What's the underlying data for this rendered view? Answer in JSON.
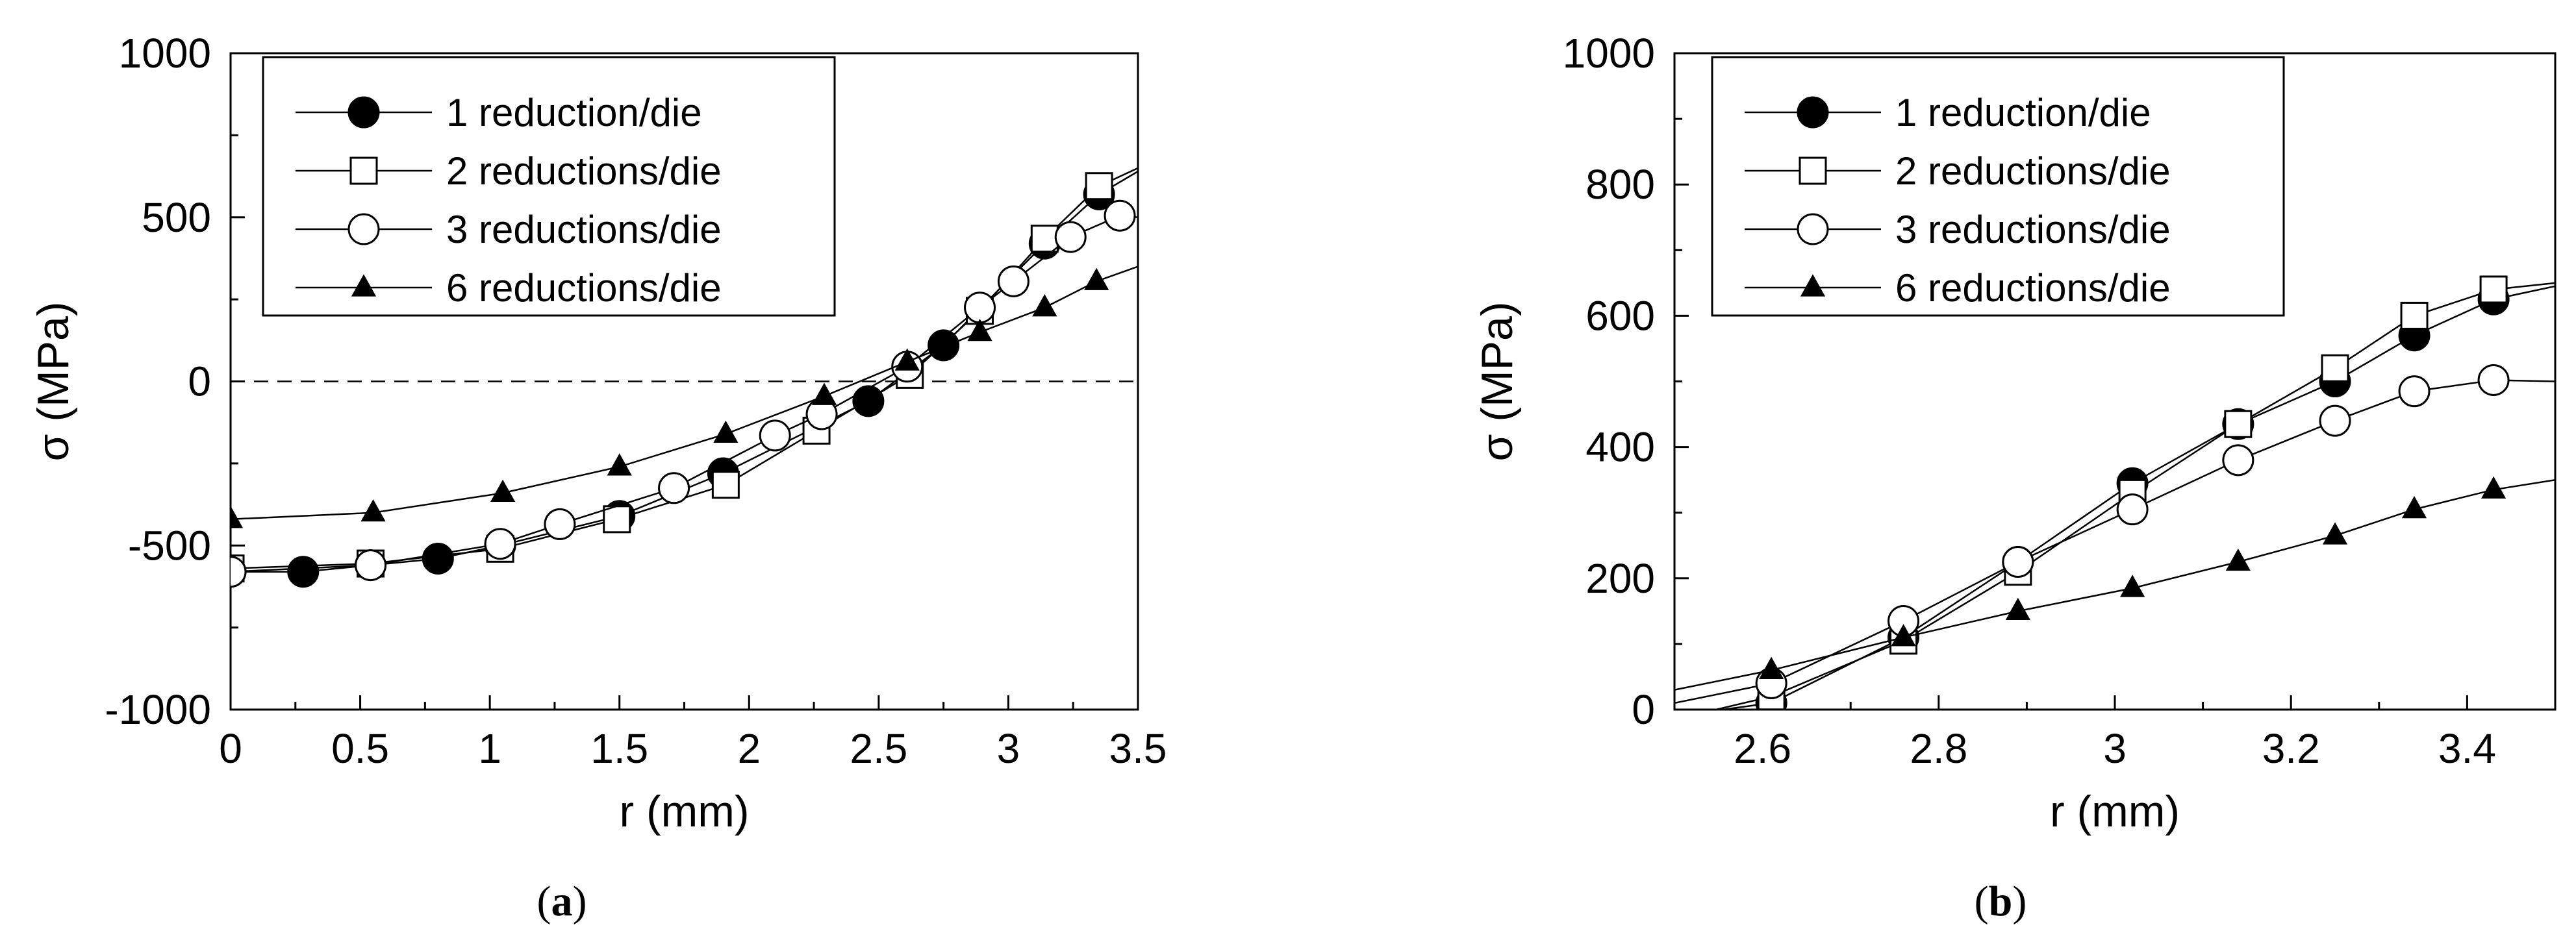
{
  "chart_data": [
    {
      "panel": "(a)",
      "type": "line",
      "xlabel": "r (mm)",
      "ylabel": "σ (MPa)",
      "xlim": [
        0,
        3.5
      ],
      "ylim": [
        -1000,
        1000
      ],
      "xticks": [
        0,
        0.5,
        1,
        1.5,
        2,
        2.5,
        3,
        3.5
      ],
      "yticks": [
        -1000,
        -500,
        0,
        500,
        1000
      ],
      "xtick_labels": [
        "0",
        "0.5",
        "1",
        "1.5",
        "2",
        "2.5",
        "3",
        "3.5"
      ],
      "ytick_labels": [
        "-1000",
        "-500",
        "0",
        "500",
        "1000"
      ],
      "zero_line": "dashed",
      "grid": false,
      "legend_position": "top-left",
      "series": [
        {
          "name": "1 reduction/die",
          "marker": "filled-circle",
          "x": [
            0,
            0.28,
            0.54,
            0.8,
            1.04,
            1.5,
            1.9,
            2.46,
            2.75,
            3.14,
            3.35,
            3.5
          ],
          "y": [
            -580,
            -580,
            -560,
            -540,
            -500,
            -410,
            -280,
            -60,
            110,
            420,
            570,
            640
          ]
        },
        {
          "name": "2 reductions/die",
          "marker": "open-square",
          "x": [
            0,
            0.54,
            1.04,
            1.49,
            1.91,
            2.26,
            2.62,
            2.89,
            3.14,
            3.35,
            3.5
          ],
          "y": [
            -570,
            -555,
            -510,
            -420,
            -315,
            -150,
            20,
            215,
            435,
            595,
            650
          ]
        },
        {
          "name": "3 reductions/die",
          "marker": "open-circle",
          "x": [
            0,
            0.54,
            1.04,
            1.27,
            1.71,
            2.1,
            2.28,
            2.61,
            2.89,
            3.02,
            3.24,
            3.43,
            3.5
          ],
          "y": [
            -580,
            -560,
            -495,
            -435,
            -325,
            -165,
            -100,
            45,
            225,
            305,
            440,
            505,
            500
          ]
        },
        {
          "name": "6 reductions/die",
          "marker": "filled-triangle",
          "x": [
            0,
            0.55,
            1.05,
            1.5,
            1.91,
            2.29,
            2.61,
            2.89,
            3.14,
            3.34,
            3.5
          ],
          "y": [
            -420,
            -400,
            -340,
            -260,
            -160,
            -45,
            60,
            150,
            225,
            305,
            350
          ]
        }
      ]
    },
    {
      "panel": "(b)",
      "type": "line",
      "xlabel": "r (mm)",
      "ylabel": "σ (MPa)",
      "xlim": [
        2.5,
        3.5
      ],
      "ylim": [
        0,
        1000
      ],
      "xticks": [
        2.6,
        2.8,
        3,
        3.2,
        3.4
      ],
      "yticks": [
        0,
        200,
        400,
        600,
        800,
        1000
      ],
      "xtick_labels": [
        "2.6",
        "2.8",
        "3",
        "3.2",
        "3.4"
      ],
      "ytick_labels": [
        "0",
        "200",
        "400",
        "600",
        "800",
        "1000"
      ],
      "grid": false,
      "legend_position": "top-left",
      "series": [
        {
          "name": "1 reduction/die",
          "marker": "filled-circle",
          "x": [
            2.5,
            2.61,
            2.76,
            2.89,
            3.02,
            3.14,
            3.25,
            3.34,
            3.43,
            3.5
          ],
          "y": [
            -10,
            10,
            110,
            225,
            345,
            435,
            500,
            570,
            625,
            645
          ]
        },
        {
          "name": "2 reductions/die",
          "marker": "open-square",
          "x": [
            2.5,
            2.61,
            2.76,
            2.89,
            3.02,
            3.14,
            3.25,
            3.34,
            3.43,
            3.5
          ],
          "y": [
            -15,
            20,
            105,
            210,
            330,
            435,
            520,
            600,
            640,
            650
          ]
        },
        {
          "name": "3 reductions/die",
          "marker": "open-circle",
          "x": [
            2.5,
            2.61,
            2.76,
            2.89,
            3.02,
            3.14,
            3.25,
            3.34,
            3.43,
            3.5
          ],
          "y": [
            10,
            40,
            135,
            225,
            305,
            380,
            440,
            485,
            502,
            500
          ]
        },
        {
          "name": "6 reductions/die",
          "marker": "filled-triangle",
          "x": [
            2.5,
            2.61,
            2.76,
            2.89,
            3.02,
            3.14,
            3.25,
            3.34,
            3.43,
            3.5
          ],
          "y": [
            30,
            60,
            110,
            150,
            185,
            225,
            265,
            305,
            335,
            350
          ]
        }
      ]
    }
  ],
  "captions": {
    "a_prefix": "(",
    "a_letter": "a",
    "a_suffix": ")",
    "b_prefix": "(",
    "b_letter": "b",
    "b_suffix": ")"
  }
}
